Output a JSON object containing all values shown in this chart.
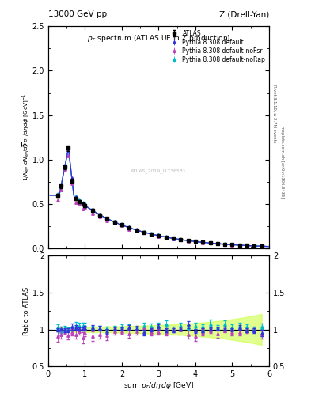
{
  "title_left": "13000 GeV pp",
  "title_right": "Z (Drell-Yan)",
  "plot_title": "p_{T} spectrum (ATLAS UE in Z production)",
  "ylabel_main": "1/N_{ev} dN_{ev}/dsum p_{T}/d\\eta d\\phi [GeV]^{-1}",
  "ylabel_ratio": "Ratio to ATLAS",
  "xlabel": "sum p_{T}/d\\eta d\\phi [GeV]",
  "right_label": "Rivet 3.1.10, ≥ 2.7M events",
  "right_label2": "mcplots.cern.ch [arXiv:1306.3436]",
  "watermark": "ATLAS_2019_I1736531",
  "xlim": [
    0,
    6
  ],
  "ylim_main": [
    0,
    2.5
  ],
  "ylim_ratio": [
    0.5,
    2.0
  ],
  "legend_entries": [
    "ATLAS",
    "Pythia 8.308 default",
    "Pythia 8.308 default-noFsr",
    "Pythia 8.308 default-noRap"
  ],
  "atlas_color": "black",
  "pythia_default_color": "#3333dd",
  "pythia_nofsr_color": "#bb44bb",
  "pythia_norap_color": "#00bbcc",
  "band_color": "#ccff44",
  "band_alpha": 0.6
}
